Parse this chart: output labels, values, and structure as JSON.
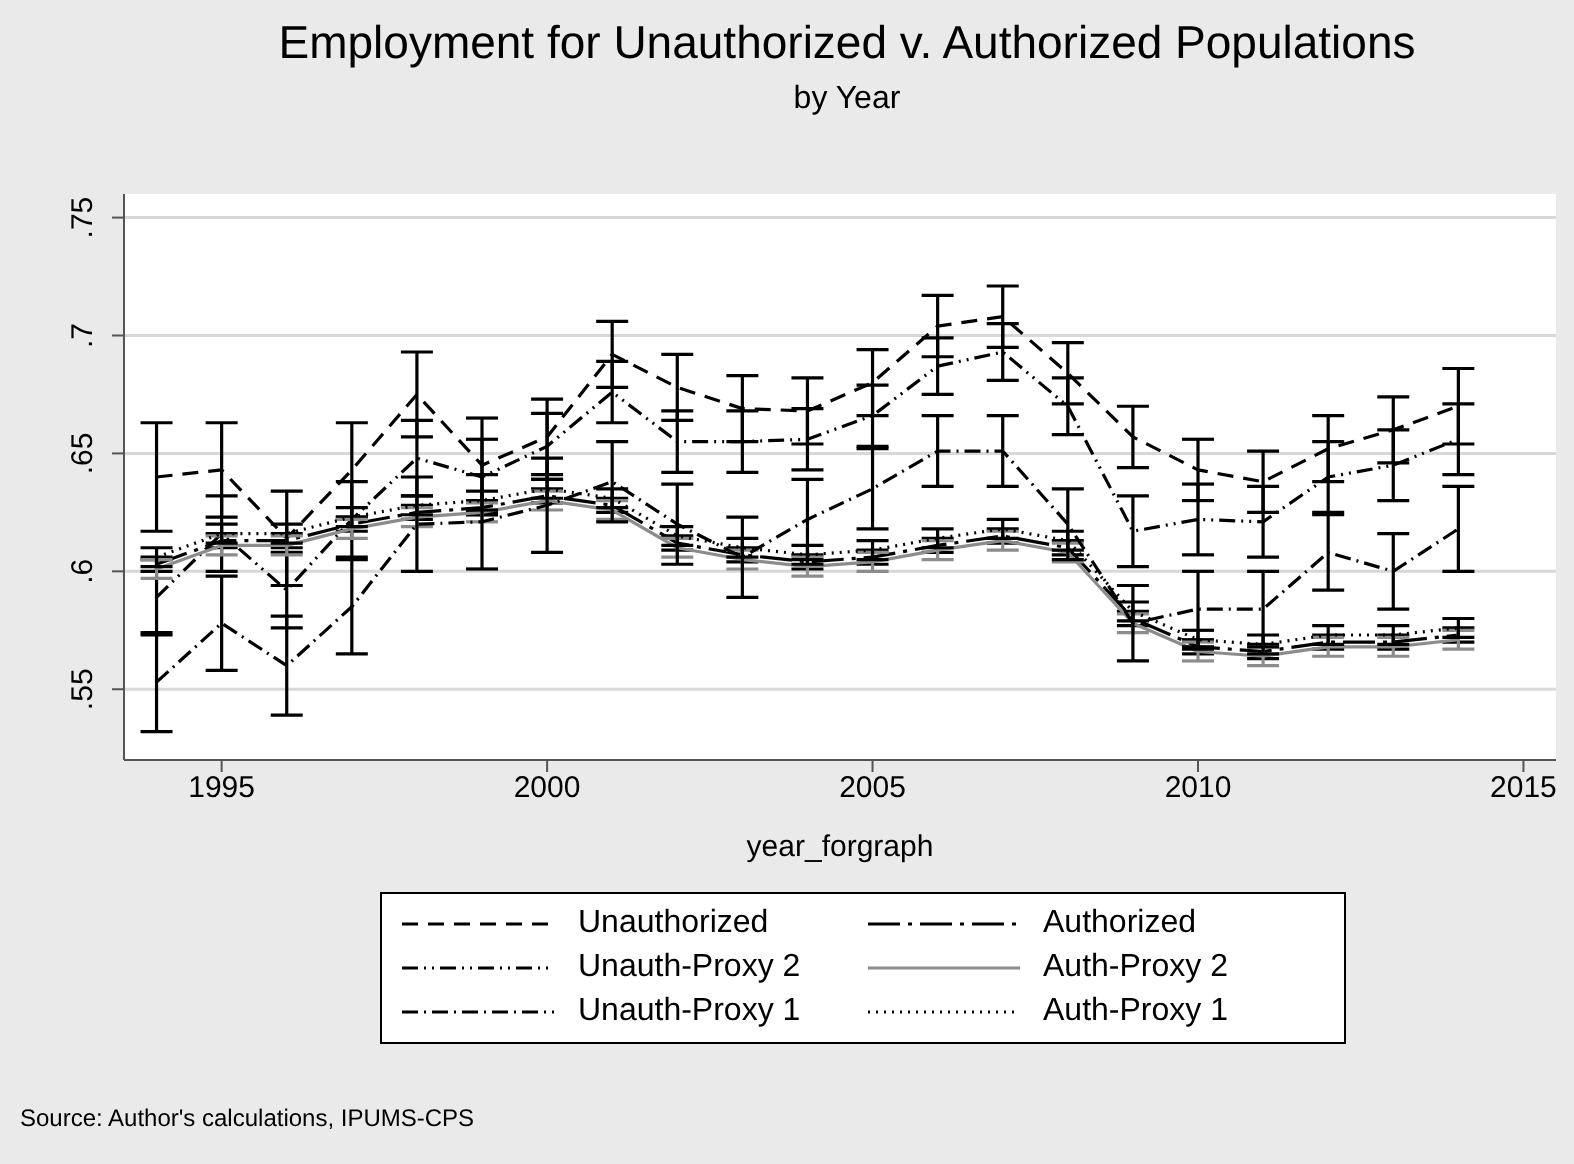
{
  "chart_data": {
    "type": "line",
    "title": "Employment for Unauthorized v. Authorized Populations",
    "subtitle": "by Year",
    "xlabel": "year_forgraph",
    "annotations": [
      "Source: Author's calculations, IPUMS-CPS"
    ],
    "x": [
      1994,
      1995,
      1996,
      1997,
      1998,
      1999,
      2000,
      2001,
      2002,
      2003,
      2004,
      2005,
      2006,
      2007,
      2008,
      2009,
      2010,
      2011,
      2012,
      2013,
      2014
    ],
    "xlim": [
      1993.5,
      2015.5
    ],
    "xticks": [
      1995,
      2000,
      2005,
      2010,
      2015
    ],
    "ylim": [
      0.52,
      0.76
    ],
    "yticks": [
      {
        "value": 0.55,
        "label": ".55"
      },
      {
        "value": 0.6,
        "label": ".6"
      },
      {
        "value": 0.65,
        "label": ".65"
      },
      {
        "value": 0.7,
        "label": ".7"
      },
      {
        "value": 0.75,
        "label": ".75"
      }
    ],
    "grid": "y",
    "legend": "bottom",
    "marker": "none",
    "series": [
      {
        "name": "Unauthorized",
        "color": "#000000",
        "line_style": "dashed",
        "values": [
          0.64,
          0.643,
          0.614,
          0.643,
          0.675,
          0.645,
          0.657,
          0.692,
          0.678,
          0.669,
          0.668,
          0.68,
          0.704,
          0.708,
          0.684,
          0.657,
          0.643,
          0.638,
          0.652,
          0.66,
          0.67
        ],
        "errors": [
          0.023,
          0.02,
          0.02,
          0.02,
          0.018,
          0.02,
          0.016,
          0.014,
          0.014,
          0.014,
          0.014,
          0.014,
          0.013,
          0.013,
          0.013,
          0.013,
          0.013,
          0.013,
          0.014,
          0.014,
          0.016
        ]
      },
      {
        "name": "Authorized",
        "color": "#000000",
        "line_style": "dashed",
        "values": [
          0.603,
          0.613,
          0.613,
          0.62,
          0.625,
          0.627,
          0.632,
          0.628,
          0.612,
          0.607,
          0.604,
          0.606,
          0.611,
          0.615,
          0.61,
          0.58,
          0.568,
          0.566,
          0.57,
          0.57,
          0.573
        ],
        "errors": [
          0.003,
          0.003,
          0.003,
          0.003,
          0.003,
          0.003,
          0.003,
          0.003,
          0.003,
          0.003,
          0.003,
          0.003,
          0.003,
          0.003,
          0.003,
          0.003,
          0.003,
          0.003,
          0.003,
          0.003,
          0.003
        ]
      },
      {
        "name": "Unauth-Proxy 2",
        "color": "#000000",
        "line_style": "dashed",
        "values": [
          0.589,
          0.616,
          0.592,
          0.622,
          0.648,
          0.64,
          0.653,
          0.676,
          0.655,
          0.655,
          0.656,
          0.666,
          0.687,
          0.693,
          0.67,
          0.617,
          0.622,
          0.621,
          0.64,
          0.645,
          0.656
        ],
        "errors": [
          0.016,
          0.016,
          0.016,
          0.016,
          0.016,
          0.016,
          0.014,
          0.013,
          0.013,
          0.013,
          0.013,
          0.013,
          0.012,
          0.012,
          0.012,
          0.015,
          0.015,
          0.015,
          0.015,
          0.015,
          0.015
        ]
      },
      {
        "name": "Auth-Proxy 2",
        "color": "#8c8c8c",
        "line_style": "solid",
        "values": [
          0.601,
          0.611,
          0.611,
          0.618,
          0.623,
          0.625,
          0.63,
          0.626,
          0.61,
          0.605,
          0.602,
          0.604,
          0.609,
          0.613,
          0.608,
          0.578,
          0.566,
          0.564,
          0.568,
          0.568,
          0.571
        ],
        "errors": [
          0.004,
          0.004,
          0.004,
          0.004,
          0.004,
          0.004,
          0.004,
          0.004,
          0.004,
          0.004,
          0.004,
          0.004,
          0.004,
          0.004,
          0.004,
          0.004,
          0.004,
          0.004,
          0.004,
          0.004,
          0.004
        ]
      },
      {
        "name": "Unauth-Proxy 1",
        "color": "#000000",
        "line_style": "dashed",
        "values": [
          0.553,
          0.578,
          0.56,
          0.585,
          0.62,
          0.621,
          0.628,
          0.638,
          0.62,
          0.606,
          0.622,
          0.635,
          0.651,
          0.651,
          0.62,
          0.578,
          0.584,
          0.584,
          0.608,
          0.6,
          0.618
        ],
        "errors": [
          0.021,
          0.02,
          0.021,
          0.02,
          0.02,
          0.02,
          0.02,
          0.017,
          0.017,
          0.017,
          0.017,
          0.017,
          0.015,
          0.015,
          0.015,
          0.016,
          0.016,
          0.016,
          0.016,
          0.016,
          0.018
        ]
      },
      {
        "name": "Auth-Proxy 1",
        "color": "#000000",
        "line_style": "dotted",
        "values": [
          0.606,
          0.616,
          0.616,
          0.623,
          0.628,
          0.63,
          0.635,
          0.631,
          0.615,
          0.61,
          0.607,
          0.609,
          0.614,
          0.618,
          0.613,
          0.583,
          0.571,
          0.569,
          0.573,
          0.573,
          0.576
        ],
        "errors": [
          0.004,
          0.004,
          0.004,
          0.004,
          0.004,
          0.004,
          0.004,
          0.004,
          0.004,
          0.004,
          0.004,
          0.004,
          0.004,
          0.004,
          0.004,
          0.004,
          0.004,
          0.004,
          0.004,
          0.004,
          0.004
        ]
      }
    ]
  }
}
